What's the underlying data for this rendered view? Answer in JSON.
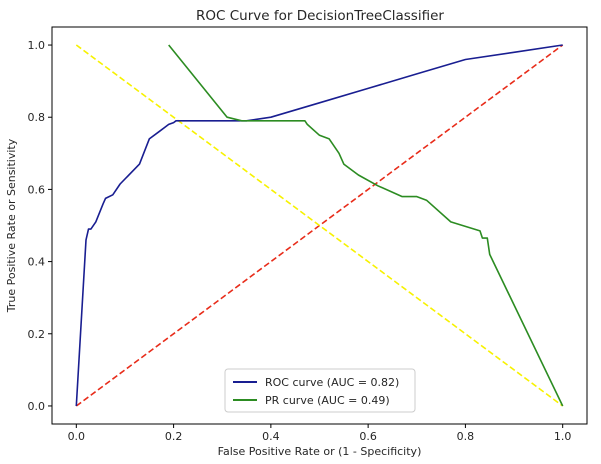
{
  "chart_data": {
    "type": "line",
    "title": "ROC Curve for DecisionTreeClassifier",
    "xlabel": "False Positive Rate or (1 - Specificity)",
    "ylabel": "True Positive Rate or Sensitivity",
    "xlim": [
      -0.05,
      1.05
    ],
    "ylim": [
      -0.05,
      1.05
    ],
    "xticks": [
      0.0,
      0.2,
      0.4,
      0.6,
      0.8,
      1.0
    ],
    "yticks": [
      0.0,
      0.2,
      0.4,
      0.6,
      0.8,
      1.0
    ],
    "xtick_labels": [
      "0.0",
      "0.2",
      "0.4",
      "0.6",
      "0.8",
      "1.0"
    ],
    "ytick_labels": [
      "0.0",
      "0.2",
      "0.4",
      "0.6",
      "0.8",
      "1.0"
    ],
    "grid": false,
    "legend_position": "lower-center",
    "series": [
      {
        "name": "ROC curve (AUC = 0.82)",
        "color": "#191e91",
        "style": "solid",
        "in_legend": true,
        "x": [
          0.0,
          0.02,
          0.025,
          0.03,
          0.04,
          0.055,
          0.06,
          0.075,
          0.09,
          0.13,
          0.15,
          0.17,
          0.19,
          0.2,
          0.205,
          0.25,
          0.3,
          0.35,
          0.4,
          0.5,
          0.6,
          0.7,
          0.8,
          0.9,
          1.0
        ],
        "y": [
          0.0,
          0.46,
          0.49,
          0.49,
          0.51,
          0.56,
          0.575,
          0.585,
          0.615,
          0.67,
          0.74,
          0.76,
          0.78,
          0.785,
          0.79,
          0.79,
          0.79,
          0.79,
          0.8,
          0.84,
          0.88,
          0.92,
          0.96,
          0.98,
          1.0
        ]
      },
      {
        "name": "PR curve (AUC = 0.49)",
        "color": "#2c8c22",
        "style": "solid",
        "in_legend": true,
        "x": [
          0.19,
          0.25,
          0.31,
          0.34,
          0.36,
          0.4,
          0.47,
          0.475,
          0.5,
          0.52,
          0.54,
          0.55,
          0.58,
          0.62,
          0.67,
          0.7,
          0.72,
          0.77,
          0.83,
          0.835,
          0.845,
          0.85,
          1.0
        ],
        "y": [
          1.0,
          0.9,
          0.8,
          0.79,
          0.79,
          0.79,
          0.79,
          0.78,
          0.75,
          0.74,
          0.7,
          0.67,
          0.64,
          0.61,
          0.58,
          0.58,
          0.57,
          0.51,
          0.485,
          0.465,
          0.465,
          0.42,
          0.0
        ]
      },
      {
        "name": "",
        "color": "#e82c1a",
        "style": "dashed",
        "in_legend": false,
        "x": [
          0.0,
          1.0
        ],
        "y": [
          0.0,
          1.0
        ]
      },
      {
        "name": "",
        "color": "#f7f200",
        "style": "dashed",
        "in_legend": false,
        "x": [
          0.0,
          1.0
        ],
        "y": [
          1.0,
          0.0
        ]
      }
    ]
  }
}
